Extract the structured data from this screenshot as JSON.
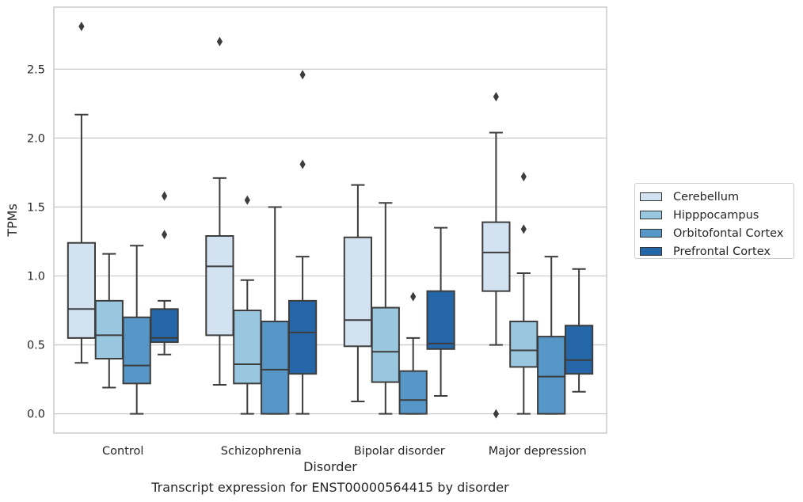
{
  "chart_data": {
    "type": "box",
    "xlabel": "Disorder",
    "ylabel": "TPMs",
    "caption": "Transcript expression for ENST00000564415 by disorder",
    "ylim": [
      -0.14,
      2.95
    ],
    "yticks": [
      "0.0",
      "0.5",
      "1.0",
      "1.5",
      "2.0",
      "2.5"
    ],
    "grid": "horizontal",
    "legend_position": "right",
    "categories": [
      "Control",
      "Schizophrenia",
      "Bipolar disorder",
      "Major depression"
    ],
    "series": [
      {
        "name": "Cerebellum",
        "color": "#d2e2f1",
        "boxes": [
          {
            "whisker_low": 0.37,
            "q1": 0.55,
            "median": 0.76,
            "q3": 1.24,
            "whisker_high": 2.17,
            "outliers": [
              2.81
            ]
          },
          {
            "whisker_low": 0.21,
            "q1": 0.57,
            "median": 1.07,
            "q3": 1.29,
            "whisker_high": 1.71,
            "outliers": [
              2.7
            ]
          },
          {
            "whisker_low": 0.09,
            "q1": 0.49,
            "median": 0.68,
            "q3": 1.28,
            "whisker_high": 1.66,
            "outliers": []
          },
          {
            "whisker_low": 0.5,
            "q1": 0.89,
            "median": 1.17,
            "q3": 1.39,
            "whisker_high": 2.04,
            "outliers": [
              2.3,
              0.0
            ]
          }
        ]
      },
      {
        "name": "Hipppocampus",
        "color": "#9ac7e0",
        "boxes": [
          {
            "whisker_low": 0.19,
            "q1": 0.4,
            "median": 0.57,
            "q3": 0.82,
            "whisker_high": 1.16,
            "outliers": []
          },
          {
            "whisker_low": 0.0,
            "q1": 0.22,
            "median": 0.36,
            "q3": 0.75,
            "whisker_high": 0.97,
            "outliers": [
              1.55
            ]
          },
          {
            "whisker_low": 0.0,
            "q1": 0.23,
            "median": 0.45,
            "q3": 0.77,
            "whisker_high": 1.53,
            "outliers": []
          },
          {
            "whisker_low": 0.0,
            "q1": 0.34,
            "median": 0.46,
            "q3": 0.67,
            "whisker_high": 1.02,
            "outliers": [
              1.72,
              1.34
            ]
          }
        ]
      },
      {
        "name": "Orbitofontal Cortex",
        "color": "#5697c8",
        "boxes": [
          {
            "whisker_low": 0.0,
            "q1": 0.22,
            "median": 0.35,
            "q3": 0.7,
            "whisker_high": 1.22,
            "outliers": []
          },
          {
            "whisker_low": 0.0,
            "q1": 0.0,
            "median": 0.32,
            "q3": 0.67,
            "whisker_high": 1.5,
            "outliers": []
          },
          {
            "whisker_low": 0.0,
            "q1": 0.0,
            "median": 0.1,
            "q3": 0.31,
            "whisker_high": 0.55,
            "outliers": [
              0.85
            ]
          },
          {
            "whisker_low": 0.0,
            "q1": 0.0,
            "median": 0.27,
            "q3": 0.56,
            "whisker_high": 1.14,
            "outliers": []
          }
        ]
      },
      {
        "name": "Prefrontal Cortex",
        "color": "#2466a8",
        "boxes": [
          {
            "whisker_low": 0.43,
            "q1": 0.52,
            "median": 0.55,
            "q3": 0.76,
            "whisker_high": 0.82,
            "outliers": [
              1.58,
              1.3
            ]
          },
          {
            "whisker_low": 0.0,
            "q1": 0.29,
            "median": 0.59,
            "q3": 0.82,
            "whisker_high": 1.14,
            "outliers": [
              2.46,
              1.81
            ]
          },
          {
            "whisker_low": 0.13,
            "q1": 0.47,
            "median": 0.51,
            "q3": 0.89,
            "whisker_high": 1.35,
            "outliers": []
          },
          {
            "whisker_low": 0.16,
            "q1": 0.29,
            "median": 0.39,
            "q3": 0.64,
            "whisker_high": 1.05,
            "outliers": []
          }
        ]
      }
    ]
  }
}
